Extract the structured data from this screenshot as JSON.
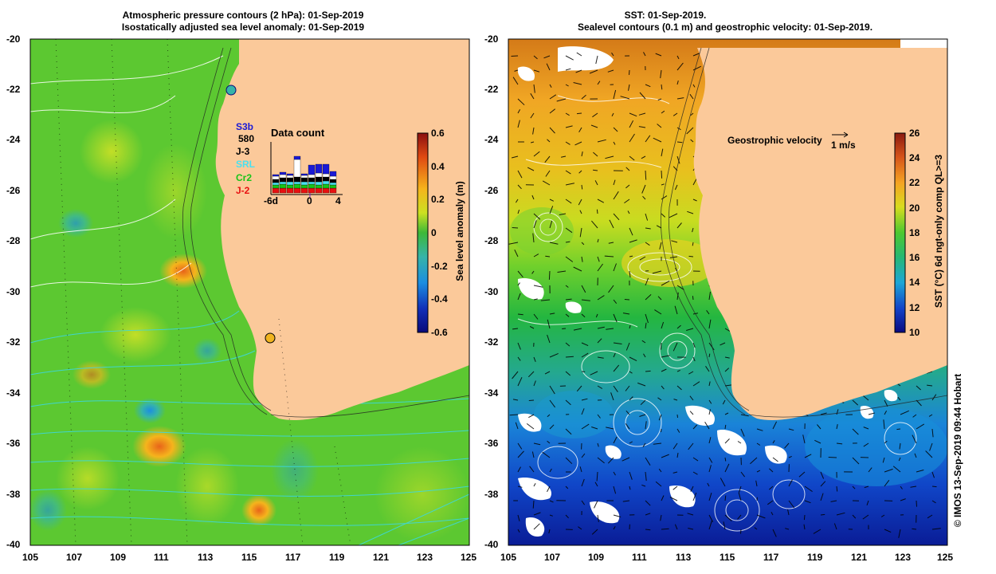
{
  "left_panel": {
    "title_line1": "Atmospheric pressure contours (2 hPa): 01-Sep-2019",
    "title_line2": "Isostatically adjusted sea level anomaly: 01-Sep-2019",
    "colorbar": {
      "label": "Sea level anomaly (m)",
      "ticks": [
        "0.6",
        "0.4",
        "0.2",
        "0",
        "-0.2",
        "-0.4",
        "-0.6"
      ],
      "range": [
        -0.6,
        0.6
      ]
    },
    "legend": {
      "title": "Data count",
      "satellites": [
        {
          "name": "S3b",
          "color": "#1a1ad6"
        },
        {
          "name": "580",
          "color": "#000000"
        },
        {
          "name": "J-3",
          "color": "#000000"
        },
        {
          "name": "SRL",
          "color": "#49e0f0"
        },
        {
          "name": "Cr2",
          "color": "#18c418"
        },
        {
          "name": "J-2",
          "color": "#e81010"
        }
      ],
      "axis_labels": [
        "-6d",
        "0",
        "4"
      ]
    }
  },
  "right_panel": {
    "title_line1": "SST: 01-Sep-2019.",
    "title_line2": "Sealevel contours (0.1 m) and geostrophic velocity: 01-Sep-2019.",
    "colorbar": {
      "label": "SST (°C) 6d ngt-only comp QL>=3",
      "ticks": [
        "26",
        "24",
        "22",
        "20",
        "18",
        "16",
        "14",
        "12",
        "10"
      ],
      "range": [
        10,
        26
      ]
    },
    "velocity_legend": {
      "label": "Geostrophic velocity",
      "scale": "1 m/s"
    }
  },
  "axes": {
    "lat_ticks": [
      "-20",
      "-22",
      "-24",
      "-26",
      "-28",
      "-30",
      "-32",
      "-34",
      "-36",
      "-38",
      "-40"
    ],
    "lon_ticks": [
      "105",
      "107",
      "109",
      "111",
      "113",
      "115",
      "117",
      "119",
      "121",
      "123",
      "125"
    ]
  },
  "credit": "© IMOS 13-Sep-2019 09:44 Hobart",
  "colors": {
    "land": "#fbc99a",
    "slaGreen": "#5cc831",
    "sstOrange": "#f0a624",
    "sstBlue": "#1060d8"
  }
}
